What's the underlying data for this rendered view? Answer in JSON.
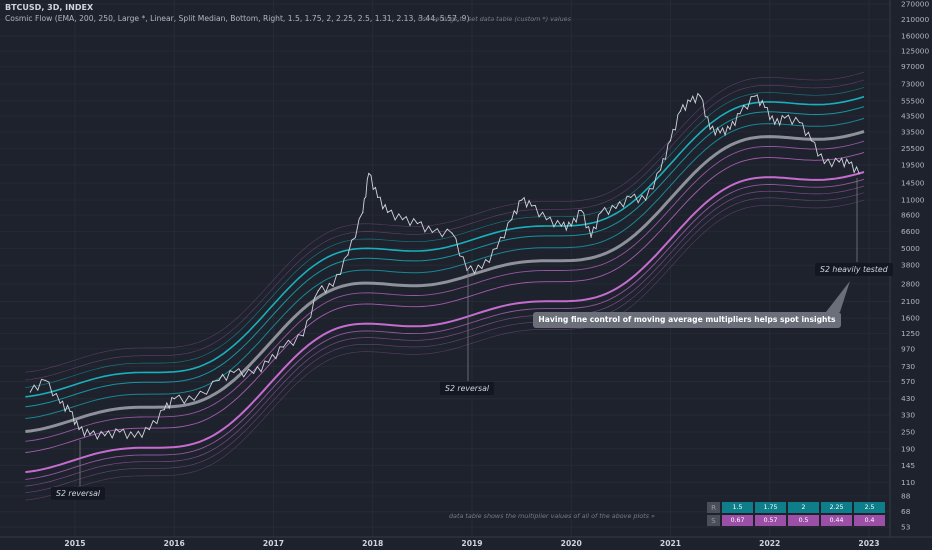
{
  "header": {
    "title": "BTCUSD, 3D, INDEX",
    "indicator": "Cosmic Flow (EMA, 200, 250, Large *, Linear, Split Median, Bottom, Right, 1.5, 1.75, 2, 2.25, 2.5, 1.31, 2.13, 3.44, 5.57, 9)"
  },
  "notes": {
    "top": "Use settings to set data table (custom *) values",
    "bottom": "data table shows the multiplier values of all of the above plots »"
  },
  "labels": {
    "s2_2015": "S2 reversal",
    "s2_2019": "S2 reversal",
    "s2_tested": "S2 heavily tested",
    "callout": "Having fine control of moving average multipliers helps spot insights"
  },
  "data_table": {
    "row1_label": "R",
    "row1": [
      "1.5",
      "1.75",
      "2",
      "2.25",
      "2.5"
    ],
    "row2_label": "S",
    "row2": [
      "0.67",
      "0.57",
      "0.5",
      "0.44",
      "0.4"
    ]
  },
  "colors": {
    "background": "#1e222d",
    "price": "#d1d4dc",
    "median": "#9598a1",
    "resistance": "#17b1bd",
    "support": "#c66cd0"
  },
  "chart_data": {
    "type": "line",
    "symbol": "BTCUSD",
    "timeframe": "3D",
    "y_scale": "log",
    "y_ticks": [
      270000,
      210000,
      160000,
      125000,
      97000,
      73000,
      55500,
      43500,
      33500,
      25500,
      19500,
      14500,
      11000,
      8600,
      6600,
      5000,
      3800,
      2800,
      2100,
      1600,
      1250,
      970,
      730,
      570,
      430,
      330,
      250,
      190,
      145,
      110,
      88,
      68,
      53
    ],
    "x_ticks": [
      "2015",
      "2016",
      "2017",
      "2018",
      "2019",
      "2020",
      "2021",
      "2022",
      "2023"
    ],
    "price_series": {
      "x": [
        2014.55,
        2014.7,
        2014.85,
        2014.95,
        2015.04,
        2015.15,
        2015.3,
        2015.45,
        2015.6,
        2015.75,
        2015.9,
        2016.0,
        2016.2,
        2016.45,
        2016.6,
        2016.8,
        2016.95,
        2017.1,
        2017.3,
        2017.45,
        2017.6,
        2017.75,
        2017.9,
        2017.96,
        2018.05,
        2018.15,
        2018.3,
        2018.45,
        2018.6,
        2018.8,
        2018.95,
        2019.1,
        2019.25,
        2019.4,
        2019.5,
        2019.6,
        2019.75,
        2019.9,
        2020.0,
        2020.1,
        2020.2,
        2020.3,
        2020.45,
        2020.6,
        2020.75,
        2020.9,
        2021.0,
        2021.1,
        2021.2,
        2021.3,
        2021.4,
        2021.5,
        2021.6,
        2021.7,
        2021.85,
        2021.95,
        2022.05,
        2022.15,
        2022.3,
        2022.42,
        2022.55,
        2022.7,
        2022.8,
        2022.9
      ],
      "y": [
        480,
        580,
        400,
        350,
        260,
        240,
        235,
        250,
        230,
        260,
        360,
        430,
        420,
        580,
        660,
        650,
        780,
        1000,
        1200,
        2500,
        2700,
        4500,
        9000,
        17000,
        11500,
        9000,
        8000,
        7500,
        6500,
        6400,
        3500,
        3600,
        5000,
        8000,
        11000,
        10000,
        8000,
        7200,
        7200,
        9300,
        6000,
        9000,
        9600,
        11500,
        11000,
        18000,
        29000,
        47000,
        55000,
        60000,
        35000,
        33000,
        35000,
        45000,
        60000,
        50000,
        38000,
        42000,
        39000,
        29000,
        20000,
        20500,
        20000,
        17000
      ]
    },
    "bands": [
      {
        "name": "S2",
        "y2015": 170,
        "y2023": 19000
      },
      {
        "name": "median",
        "y2015": 330,
        "y2023": 36000
      },
      {
        "name": "R2",
        "y2015": 570,
        "y2023": 62000
      }
    ]
  }
}
